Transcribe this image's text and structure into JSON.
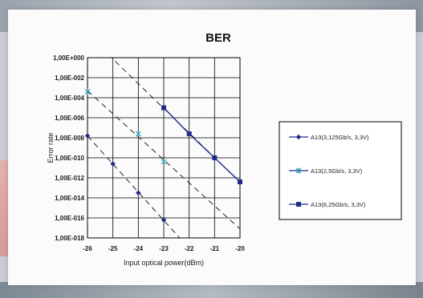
{
  "colors": {
    "series": "#1f2a8a",
    "curve": "#222222",
    "grid": "#000000"
  },
  "chart_data": {
    "type": "line",
    "title": "BER",
    "xlabel": "Input optical power(dBm)",
    "ylabel": "Error rate",
    "xlim": [
      -26,
      -20
    ],
    "ylim_exponent": [
      -18,
      0
    ],
    "y_scale": "log",
    "x_ticks": [
      "-26",
      "-25",
      "-24",
      "-23",
      "-22",
      "-21",
      "-20"
    ],
    "y_ticks": [
      "1,00E+000",
      "1,00E-002",
      "1,00E-004",
      "1,00E-006",
      "1,00E-008",
      "1,00E-010",
      "1,00E-012",
      "1,00E-014",
      "1,00E-016",
      "1,00E-018"
    ],
    "grid": true,
    "legend_position": "right",
    "series": [
      {
        "name": "A13(3,125Gb/s, 3,3V)",
        "marker": "diamond",
        "x": [
          -26,
          -25,
          -24,
          -23
        ],
        "y_exponent": [
          -7.8,
          -10.6,
          -13.5,
          -16.2
        ]
      },
      {
        "name": "A13(2,5Gb/s, 3,3V)",
        "marker": "star",
        "x": [
          -26,
          -24,
          -23
        ],
        "y_exponent": [
          -3.4,
          -7.6,
          -10.4
        ]
      },
      {
        "name": "A13(6,25Gb/s, 3,3V)",
        "marker": "square",
        "x": [
          -23,
          -22,
          -21,
          -20
        ],
        "y_exponent": [
          -5.0,
          -7.6,
          -10.0,
          -12.4
        ]
      }
    ]
  }
}
